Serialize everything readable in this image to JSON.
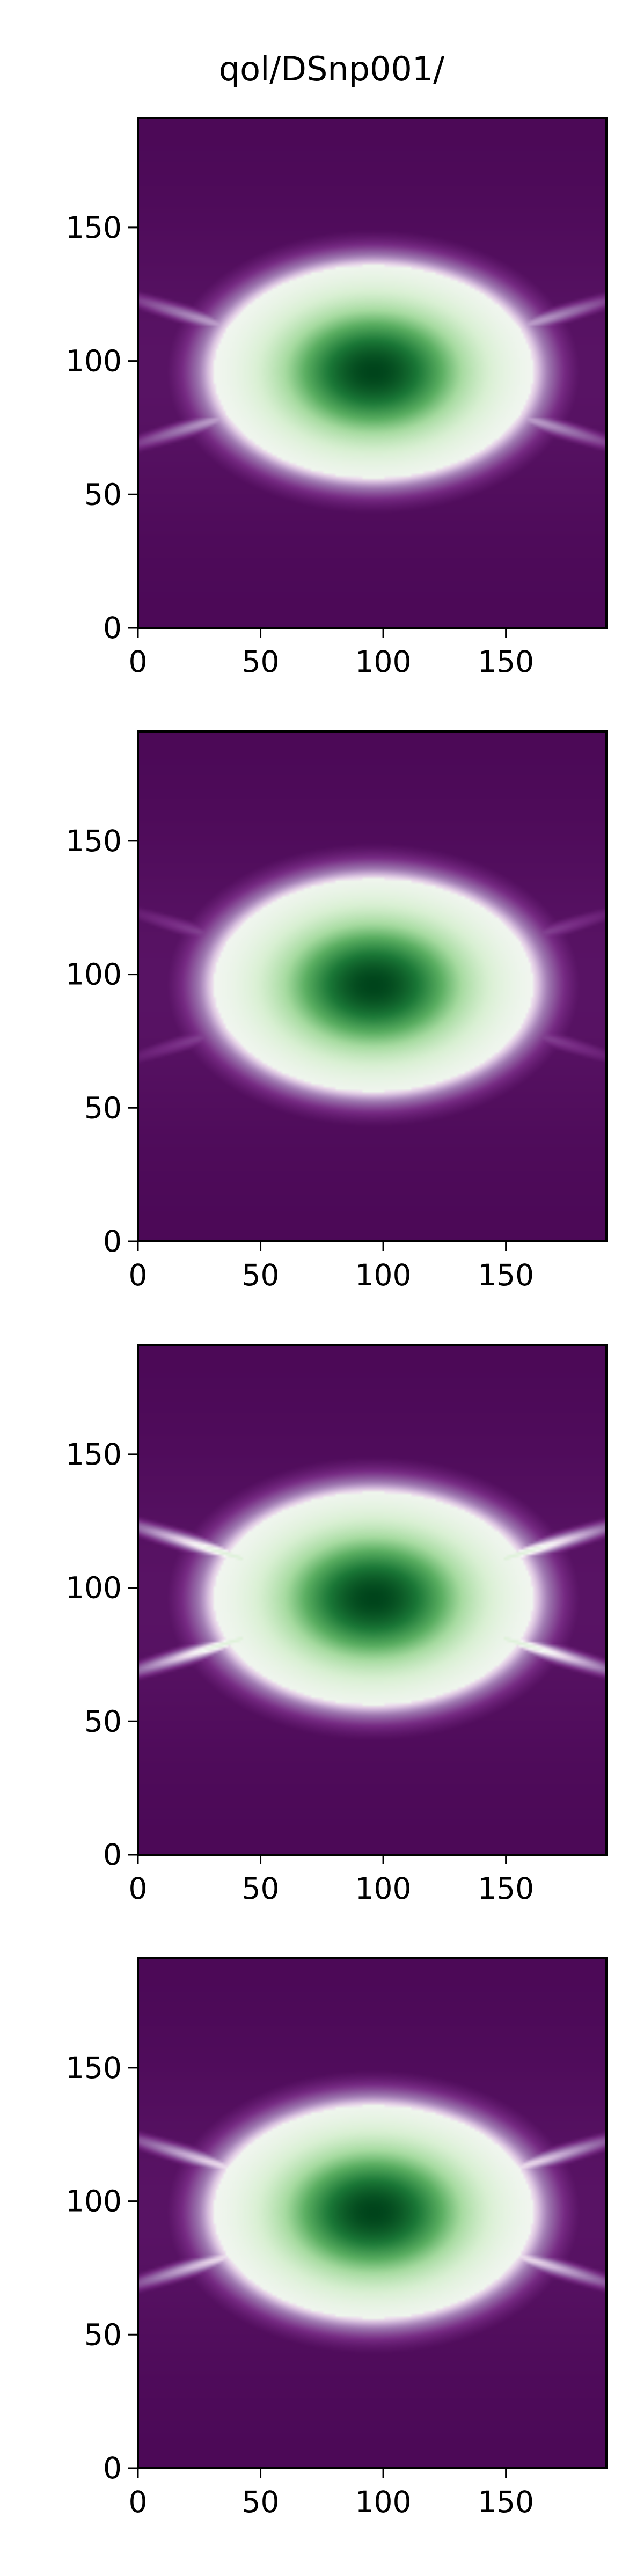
{
  "figure": {
    "title": "qol/DSnp001/"
  },
  "colors": {
    "background": "#ffffff",
    "axis": "#000000",
    "colormap": "PRGn",
    "field_low": "#40004b",
    "field_mid": "#f7f7f7",
    "field_high": "#00441b"
  },
  "chart_data": [
    {
      "type": "heatmap",
      "title": "",
      "xlabel": "",
      "ylabel": "",
      "xlim": [
        0,
        191
      ],
      "ylim": [
        0,
        191
      ],
      "xticks": [
        0,
        50,
        100,
        150
      ],
      "yticks": [
        0,
        50,
        100,
        150
      ],
      "tick_labels_x": [
        "0",
        "50",
        "100",
        "150"
      ],
      "tick_labels_y": [
        "0",
        "50",
        "100",
        "150"
      ],
      "field": {
        "center": [
          96,
          96
        ],
        "core_radius": [
          28,
          18
        ],
        "halo_radius": [
          62,
          38
        ],
        "edge_band": 0.12,
        "streak_amplitude": 0.1
      }
    },
    {
      "type": "heatmap",
      "title": "",
      "xlabel": "",
      "ylabel": "",
      "xlim": [
        0,
        191
      ],
      "ylim": [
        0,
        191
      ],
      "xticks": [
        0,
        50,
        100,
        150
      ],
      "yticks": [
        0,
        50,
        100,
        150
      ],
      "tick_labels_x": [
        "0",
        "50",
        "100",
        "150"
      ],
      "tick_labels_y": [
        "0",
        "50",
        "100",
        "150"
      ],
      "field": {
        "center": [
          96,
          96
        ],
        "core_radius": [
          28,
          18
        ],
        "halo_radius": [
          62,
          38
        ],
        "edge_band": 0.12,
        "streak_amplitude": 0.06
      }
    },
    {
      "type": "heatmap",
      "title": "",
      "xlabel": "",
      "ylabel": "",
      "xlim": [
        0,
        191
      ],
      "ylim": [
        0,
        191
      ],
      "xticks": [
        0,
        50,
        100,
        150
      ],
      "yticks": [
        0,
        50,
        100,
        150
      ],
      "tick_labels_x": [
        "0",
        "50",
        "100",
        "150"
      ],
      "tick_labels_y": [
        "0",
        "50",
        "100",
        "150"
      ],
      "field": {
        "center": [
          96,
          96
        ],
        "core_radius": [
          28,
          18
        ],
        "halo_radius": [
          62,
          38
        ],
        "edge_band": 0.12,
        "streak_amplitude": 0.14
      }
    },
    {
      "type": "heatmap",
      "title": "",
      "xlabel": "",
      "ylabel": "",
      "xlim": [
        0,
        191
      ],
      "ylim": [
        0,
        191
      ],
      "xticks": [
        0,
        50,
        100,
        150
      ],
      "yticks": [
        0,
        50,
        100,
        150
      ],
      "tick_labels_x": [
        "0",
        "50",
        "100",
        "150"
      ],
      "tick_labels_y": [
        "0",
        "50",
        "100",
        "150"
      ],
      "field": {
        "center": [
          96,
          96
        ],
        "core_radius": [
          28,
          18
        ],
        "halo_radius": [
          62,
          38
        ],
        "edge_band": 0.12,
        "streak_amplitude": 0.12
      }
    }
  ]
}
